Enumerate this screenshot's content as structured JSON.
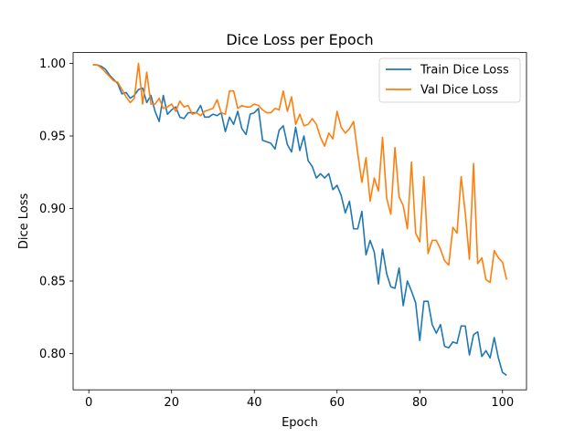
{
  "chart_data": {
    "type": "line",
    "title": "Dice Loss per Epoch",
    "xlabel": "Epoch",
    "ylabel": "Dice Loss",
    "xlim": [
      -3.8,
      105.8
    ],
    "ylim": [
      0.775,
      1.0075
    ],
    "xticks": [
      0,
      20,
      40,
      60,
      80,
      100
    ],
    "yticks": [
      0.8,
      0.85,
      0.9,
      0.95,
      1.0
    ],
    "legend_position": "top-right",
    "grid": false,
    "x": [
      1,
      2,
      3,
      4,
      5,
      6,
      7,
      8,
      9,
      10,
      11,
      12,
      13,
      14,
      15,
      16,
      17,
      18,
      19,
      20,
      21,
      22,
      23,
      24,
      25,
      26,
      27,
      28,
      29,
      30,
      31,
      32,
      33,
      34,
      35,
      36,
      37,
      38,
      39,
      40,
      41,
      42,
      43,
      44,
      45,
      46,
      47,
      48,
      49,
      50,
      51,
      52,
      53,
      54,
      55,
      56,
      57,
      58,
      59,
      60,
      61,
      62,
      63,
      64,
      65,
      66,
      67,
      68,
      69,
      70,
      71,
      72,
      73,
      74,
      75,
      76,
      77,
      78,
      79,
      80,
      81,
      82,
      83,
      84,
      85,
      86,
      87,
      88,
      89,
      90,
      91,
      92,
      93,
      94,
      95,
      96,
      97,
      98,
      99,
      100,
      101
    ],
    "series": [
      {
        "name": "Train Dice Loss",
        "color": "#1f77b4",
        "values": [
          0.999,
          0.999,
          0.998,
          0.996,
          0.992,
          0.989,
          0.986,
          0.979,
          0.98,
          0.976,
          0.978,
          0.982,
          0.983,
          0.973,
          0.978,
          0.967,
          0.96,
          0.978,
          0.965,
          0.968,
          0.97,
          0.963,
          0.962,
          0.966,
          0.966,
          0.966,
          0.971,
          0.963,
          0.963,
          0.965,
          0.964,
          0.966,
          0.953,
          0.963,
          0.958,
          0.967,
          0.955,
          0.951,
          0.965,
          0.966,
          0.969,
          0.947,
          0.946,
          0.945,
          0.941,
          0.954,
          0.957,
          0.944,
          0.939,
          0.956,
          0.94,
          0.95,
          0.933,
          0.929,
          0.921,
          0.924,
          0.921,
          0.924,
          0.913,
          0.916,
          0.909,
          0.897,
          0.905,
          0.886,
          0.886,
          0.898,
          0.868,
          0.878,
          0.87,
          0.848,
          0.872,
          0.855,
          0.846,
          0.845,
          0.859,
          0.833,
          0.85,
          0.843,
          0.835,
          0.809,
          0.836,
          0.836,
          0.82,
          0.814,
          0.82,
          0.805,
          0.804,
          0.808,
          0.807,
          0.819,
          0.819,
          0.799,
          0.813,
          0.815,
          0.798,
          0.802,
          0.797,
          0.811,
          0.797,
          0.787,
          0.785
        ]
      },
      {
        "name": "Val Dice Loss",
        "color": "#ff7f0e",
        "values": [
          0.999,
          0.999,
          0.997,
          0.994,
          0.991,
          0.988,
          0.987,
          0.982,
          0.977,
          0.973,
          0.976,
          1.0,
          0.972,
          0.994,
          0.972,
          0.972,
          0.976,
          0.969,
          0.97,
          0.972,
          0.967,
          0.974,
          0.97,
          0.971,
          0.965,
          0.966,
          0.964,
          0.967,
          0.968,
          0.969,
          0.975,
          0.966,
          0.965,
          0.981,
          0.981,
          0.969,
          0.971,
          0.97,
          0.97,
          0.972,
          0.971,
          0.968,
          0.966,
          0.966,
          0.969,
          0.968,
          0.981,
          0.967,
          0.977,
          0.958,
          0.965,
          0.957,
          0.958,
          0.962,
          0.958,
          0.949,
          0.943,
          0.952,
          0.948,
          0.967,
          0.956,
          0.952,
          0.955,
          0.96,
          0.938,
          0.918,
          0.935,
          0.905,
          0.921,
          0.912,
          0.949,
          0.907,
          0.896,
          0.942,
          0.908,
          0.902,
          0.886,
          0.932,
          0.883,
          0.877,
          0.922,
          0.869,
          0.878,
          0.878,
          0.872,
          0.864,
          0.861,
          0.887,
          0.883,
          0.922,
          0.897,
          0.865,
          0.931,
          0.862,
          0.866,
          0.851,
          0.849,
          0.871,
          0.866,
          0.863,
          0.851
        ]
      }
    ]
  }
}
